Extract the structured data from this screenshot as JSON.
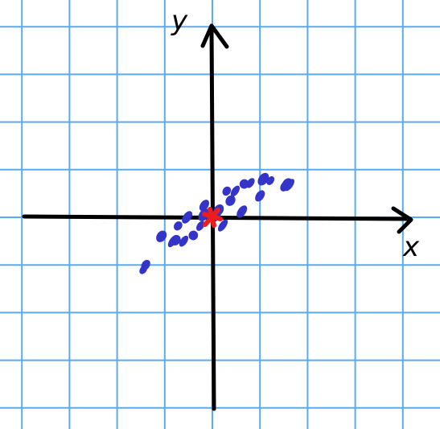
{
  "axes": {
    "x_label": "x",
    "y_label": "y",
    "x_range": [
      -4,
      4
    ],
    "y_range": [
      -4,
      4
    ]
  },
  "grid": {
    "visible": true,
    "color": "#5aaaf0"
  },
  "chart_data": {
    "type": "scatter",
    "series": [
      {
        "color": "#3434c8",
        "points": [
          [
            -1.45,
            -1.1
          ],
          [
            -1.4,
            -1.0
          ],
          [
            -1.07,
            -0.4
          ],
          [
            -0.83,
            -0.5
          ],
          [
            -0.72,
            -0.18
          ],
          [
            -0.77,
            -0.48
          ],
          [
            -0.6,
            -0.5
          ],
          [
            -0.53,
            0.0
          ],
          [
            -0.4,
            -0.38
          ],
          [
            -0.25,
            -0.18
          ],
          [
            -0.17,
            0.25
          ],
          [
            -0.18,
            0.05
          ],
          [
            -0.05,
            0.05
          ],
          [
            0.08,
            0.02
          ],
          [
            0.13,
            0.15
          ],
          [
            0.22,
            -0.17
          ],
          [
            0.3,
            0.55
          ],
          [
            0.38,
            0.35
          ],
          [
            0.48,
            0.55
          ],
          [
            0.62,
            0.12
          ],
          [
            0.67,
            0.7
          ],
          [
            0.8,
            0.72
          ],
          [
            1.0,
            0.45
          ],
          [
            1.07,
            0.8
          ],
          [
            1.22,
            0.77
          ],
          [
            1.52,
            0.65
          ],
          [
            1.57,
            0.7
          ],
          [
            1.62,
            0.68
          ]
        ]
      }
    ],
    "center_marker": {
      "point": [
        0,
        0
      ],
      "color": "#ee1c1c"
    }
  }
}
